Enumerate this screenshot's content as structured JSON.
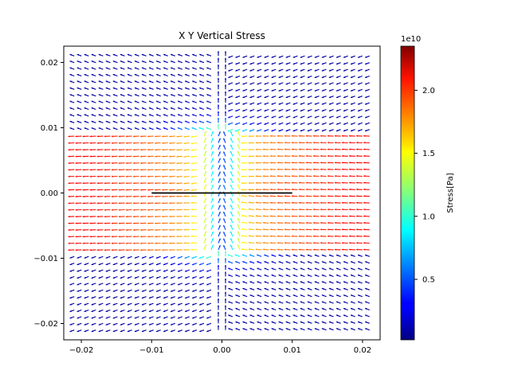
{
  "chart_data": {
    "type": "quiver",
    "title": "X Y Vertical Stress",
    "xlabel": "",
    "ylabel": "",
    "xlim": [
      -0.0225,
      0.0225
    ],
    "ylim": [
      -0.0225,
      0.0225
    ],
    "x_ticks": [
      -0.02,
      -0.01,
      0.0,
      0.01,
      0.02
    ],
    "x_tick_labels": [
      "−0.02",
      "−0.01",
      "0.00",
      "0.01",
      "0.02"
    ],
    "y_ticks": [
      -0.02,
      -0.01,
      0.0,
      0.01,
      0.02
    ],
    "y_tick_labels": [
      "−0.02",
      "−0.01",
      "0.00",
      "0.01",
      "0.02"
    ],
    "grid": false,
    "field": {
      "x_range": [
        -0.021,
        0.021
      ],
      "y_range": [
        -0.021,
        0.021
      ],
      "columns": 42,
      "rows": 42,
      "band_half_height": 0.0095,
      "crack_half_width": 0.01
    },
    "crack_line": {
      "x": [
        -0.01,
        0.01
      ],
      "y": [
        0.0,
        0.0
      ],
      "color": "#000000"
    },
    "colorbar": {
      "label": "Stress[Pa]",
      "multiplier": "1e10",
      "colormap": "jet",
      "vmin": 0.02,
      "vmax": 2.35,
      "ticks": [
        0.5,
        1.0,
        1.5,
        2.0
      ],
      "tick_labels": [
        "0.5",
        "1.0",
        "1.5",
        "2.0"
      ]
    }
  }
}
